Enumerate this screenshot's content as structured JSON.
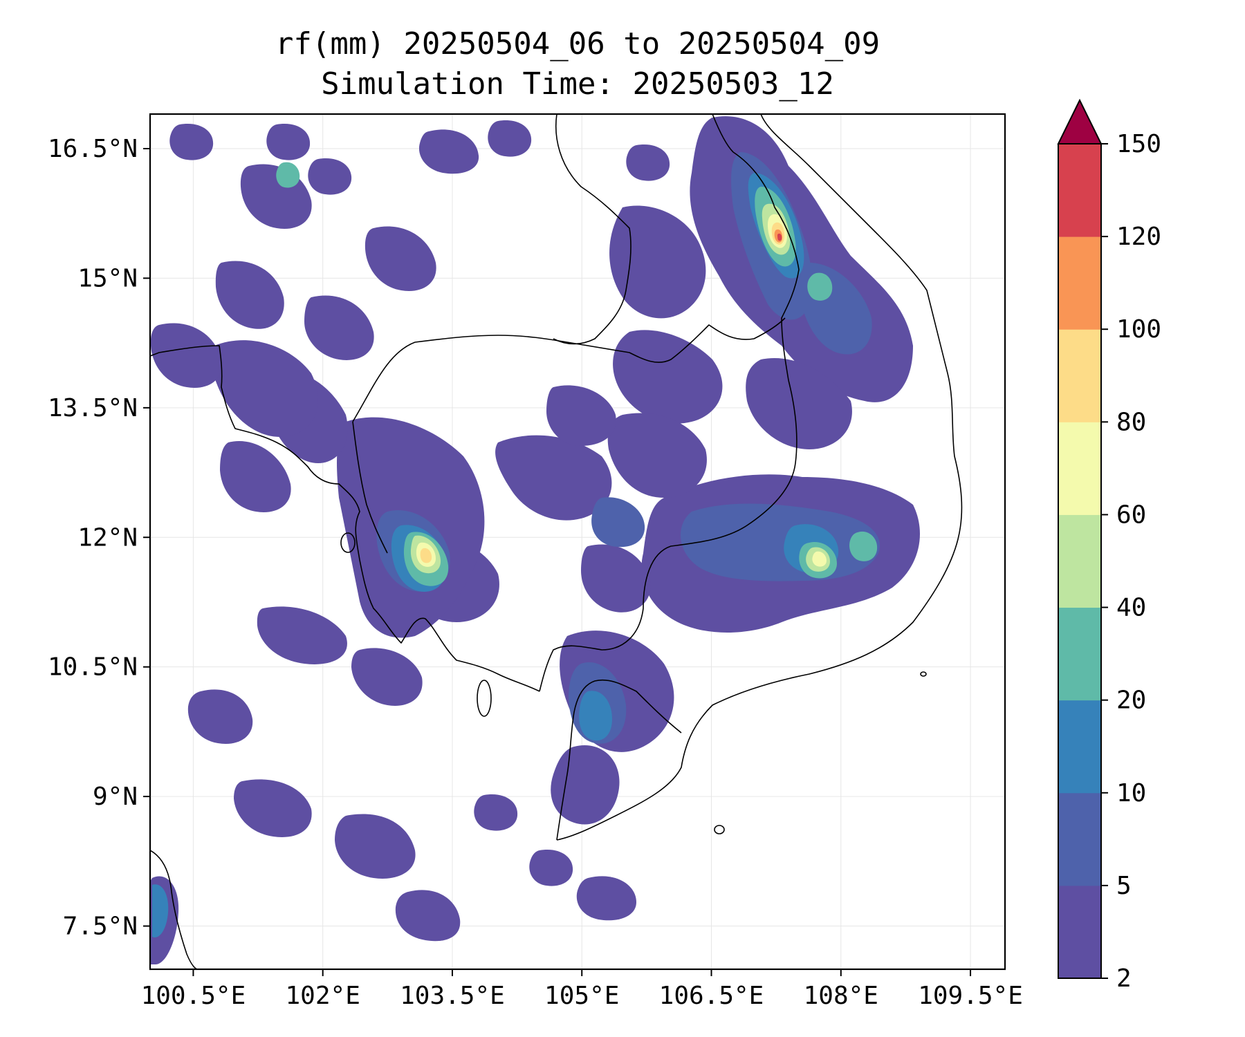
{
  "title": {
    "line1": "rf(mm) 20250504_06 to 20250504_09",
    "line2": "Simulation Time: 20250503_12"
  },
  "map": {
    "lon_range": [
      100.0,
      109.9
    ],
    "lat_range": [
      7.0,
      16.9
    ],
    "x_ticks": [
      {
        "value": 100.5,
        "label": "100.5°E"
      },
      {
        "value": 102.0,
        "label": "102°E"
      },
      {
        "value": 103.5,
        "label": "103.5°E"
      },
      {
        "value": 105.0,
        "label": "105°E"
      },
      {
        "value": 106.5,
        "label": "106.5°E"
      },
      {
        "value": 108.0,
        "label": "108°E"
      },
      {
        "value": 109.5,
        "label": "109.5°E"
      }
    ],
    "y_ticks": [
      {
        "value": 16.5,
        "label": "16.5°N"
      },
      {
        "value": 15.0,
        "label": "15°N"
      },
      {
        "value": 13.5,
        "label": "13.5°N"
      },
      {
        "value": 12.0,
        "label": "12°N"
      },
      {
        "value": 10.5,
        "label": "10.5°N"
      },
      {
        "value": 9.0,
        "label": "9°N"
      },
      {
        "value": 7.5,
        "label": "7.5°N"
      }
    ],
    "grid": true,
    "colors": {
      "coast": "#000000",
      "grid": "#e6e6e6"
    }
  },
  "colorbar": {
    "levels": [
      "2",
      "5",
      "10",
      "20",
      "40",
      "60",
      "80",
      "100",
      "120",
      "150"
    ],
    "colors": [
      "#5e4fa2",
      "#4e62ab",
      "#3682ba",
      "#5fbaa8",
      "#bee5a0",
      "#f4faad",
      "#fddc88",
      "#f99555",
      "#d7414e"
    ],
    "extend_color": "#9e0142",
    "extend": "max"
  }
}
